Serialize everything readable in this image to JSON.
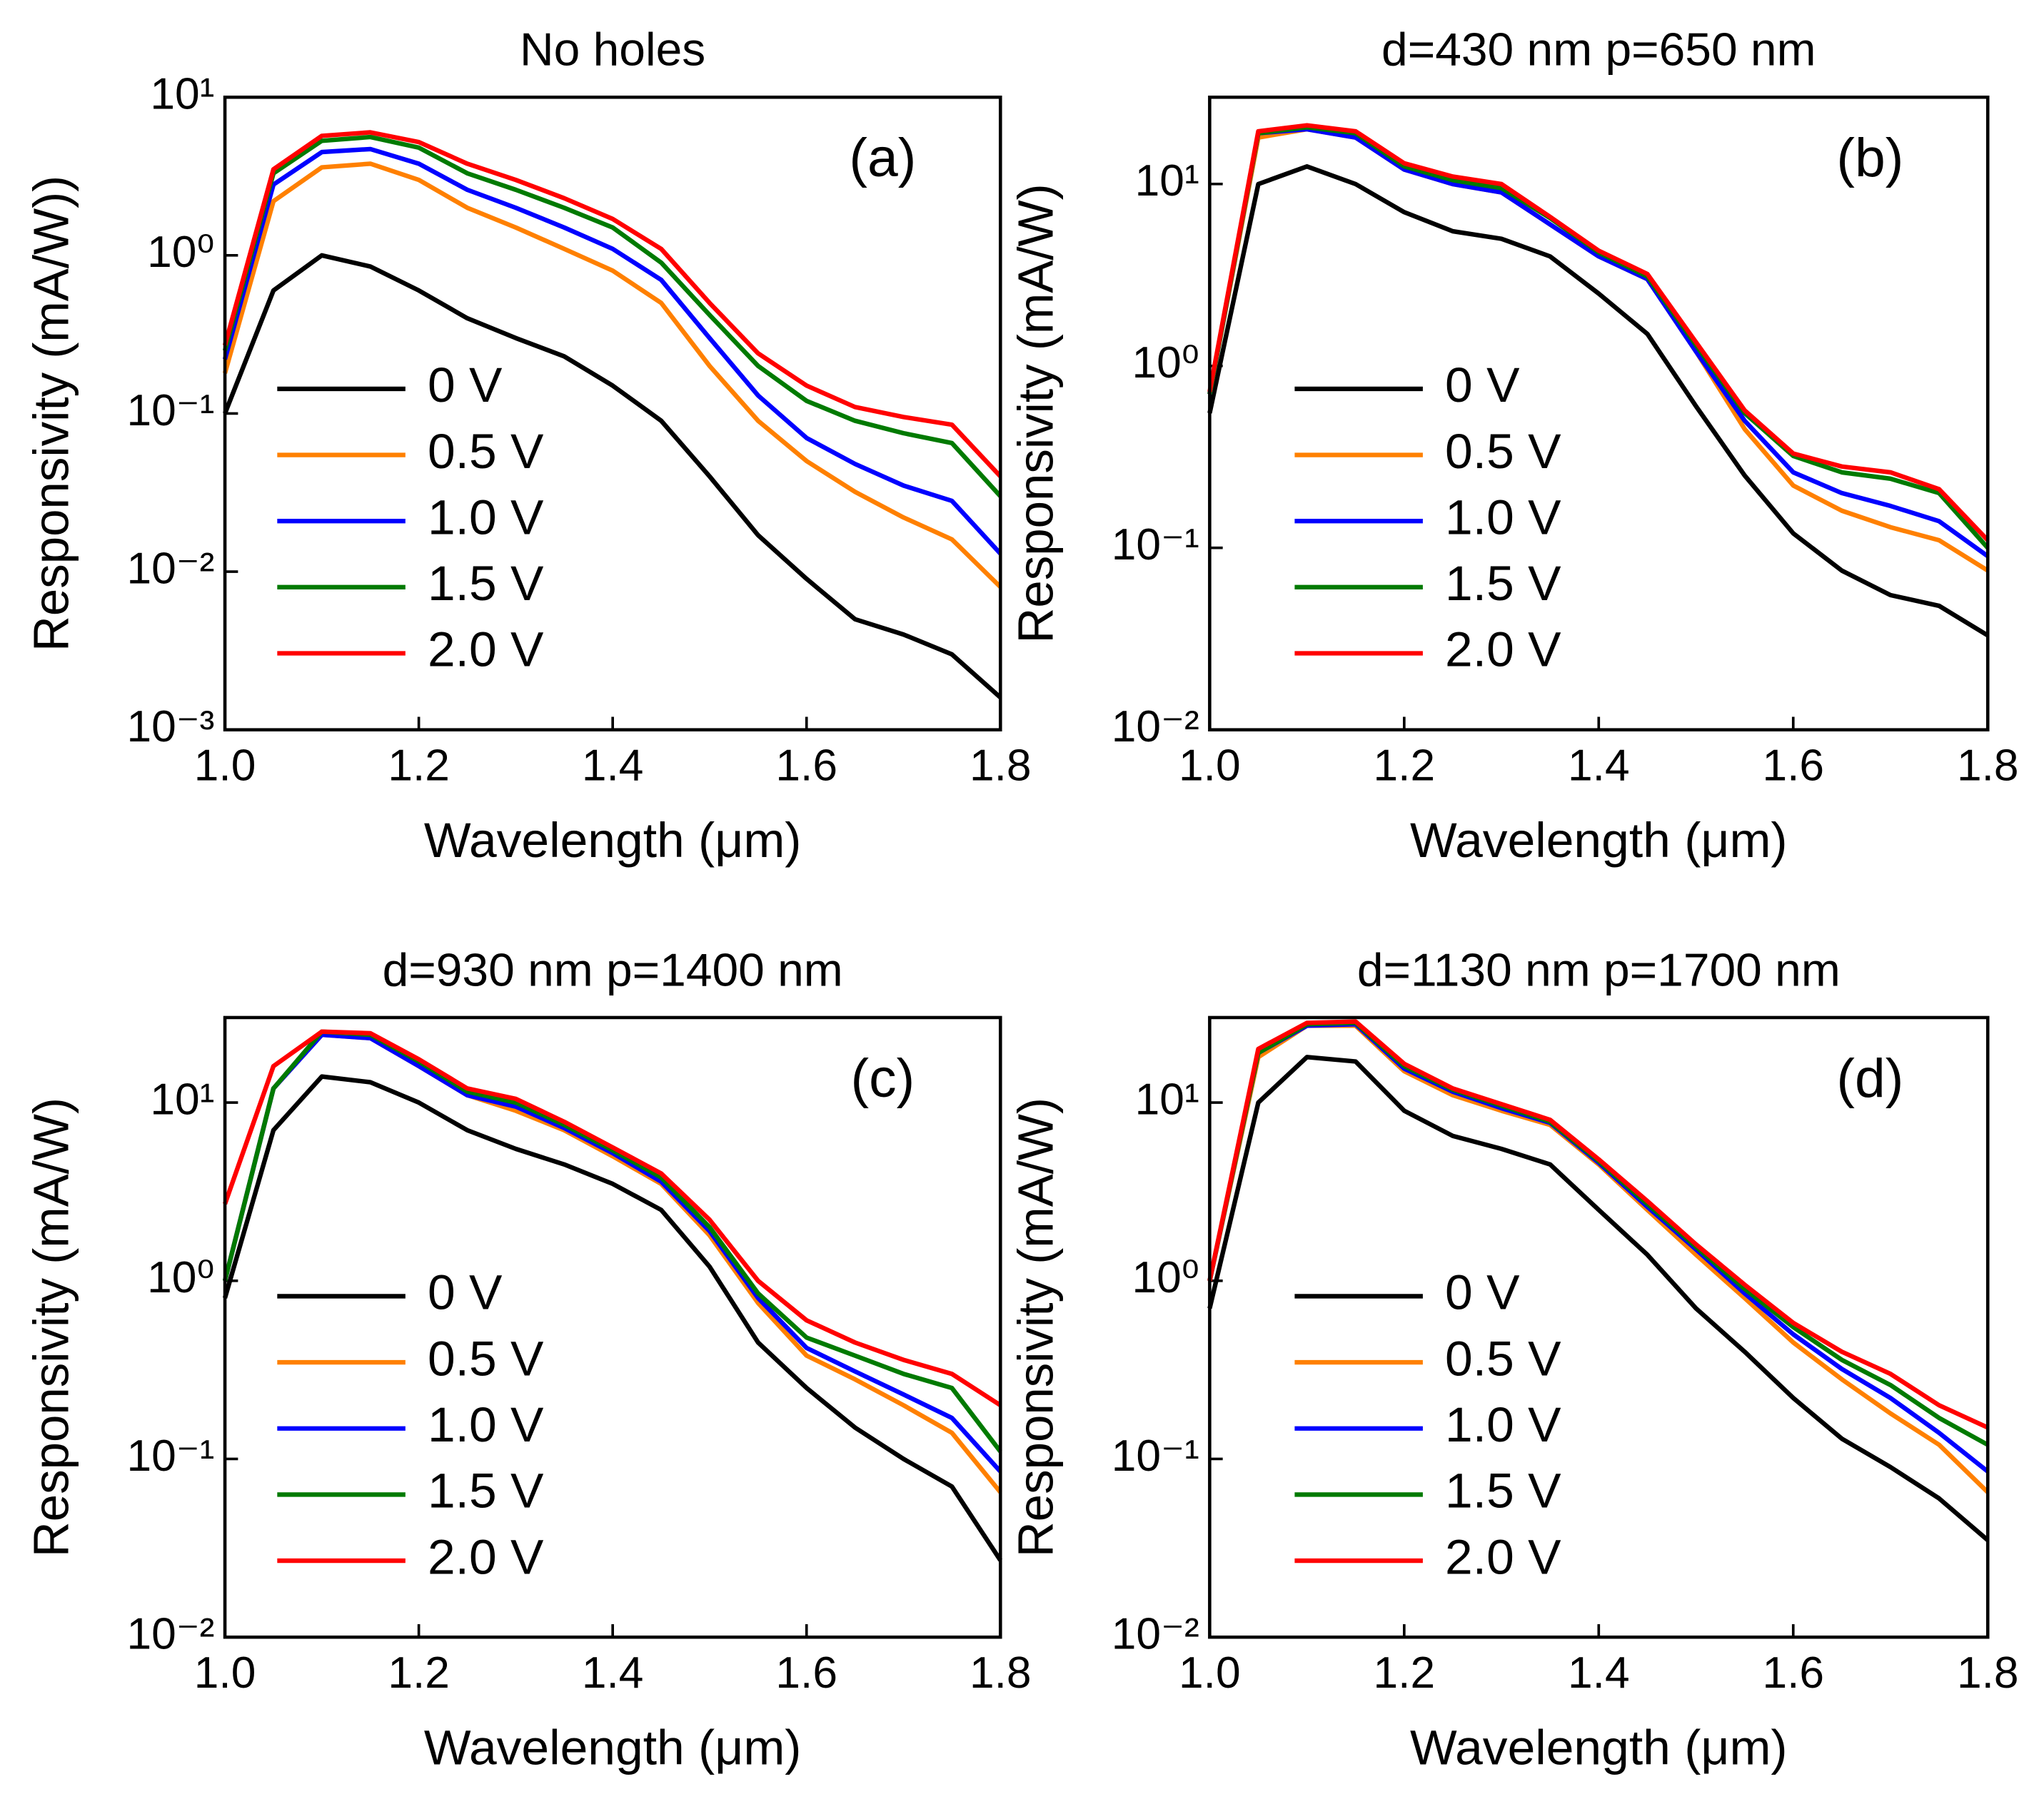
{
  "chart_data": [
    {
      "type": "line",
      "title": "No holes",
      "panel_label": "(a)",
      "xlabel": "Wavelength (μm)",
      "ylabel": "Responsivity (mA/W))",
      "x": [
        1.0,
        1.05,
        1.1,
        1.15,
        1.2,
        1.25,
        1.3,
        1.35,
        1.4,
        1.45,
        1.5,
        1.55,
        1.6,
        1.65,
        1.7,
        1.75,
        1.8
      ],
      "series": [
        {
          "name": "0 V",
          "color": "#000000",
          "values": [
            0.1,
            0.6,
            1.0,
            0.85,
            0.6,
            0.4,
            0.3,
            0.23,
            0.15,
            0.09,
            0.04,
            0.017,
            0.009,
            0.005,
            0.004,
            0.003,
            0.0016
          ]
        },
        {
          "name": "0.5 V",
          "color": "#ff8000",
          "values": [
            0.18,
            2.2,
            3.6,
            3.8,
            3.0,
            2.0,
            1.5,
            1.1,
            0.8,
            0.5,
            0.2,
            0.09,
            0.05,
            0.032,
            0.022,
            0.016,
            0.008
          ]
        },
        {
          "name": "1.0 V",
          "color": "#0000ff",
          "values": [
            0.22,
            2.8,
            4.5,
            4.7,
            3.8,
            2.6,
            2.0,
            1.5,
            1.1,
            0.7,
            0.3,
            0.13,
            0.07,
            0.048,
            0.035,
            0.028,
            0.013
          ]
        },
        {
          "name": "1.5 V",
          "color": "#007a00",
          "values": [
            0.25,
            3.3,
            5.3,
            5.6,
            4.8,
            3.3,
            2.6,
            2.0,
            1.5,
            0.9,
            0.42,
            0.2,
            0.12,
            0.09,
            0.075,
            0.065,
            0.03
          ]
        },
        {
          "name": "2.0 V",
          "color": "#ff0000",
          "values": [
            0.27,
            3.5,
            5.7,
            6.0,
            5.2,
            3.8,
            3.0,
            2.3,
            1.7,
            1.1,
            0.5,
            0.24,
            0.15,
            0.11,
            0.095,
            0.085,
            0.04
          ]
        }
      ],
      "xlim": [
        1.0,
        1.8
      ],
      "ylim": [
        0.001,
        10
      ],
      "log_y": true,
      "legend": "center left",
      "xticks": [
        {
          "value": 1.0,
          "label": "1.0"
        },
        1.2,
        1.4,
        1.6,
        1.8
      ],
      "yticks": [
        {
          "value": 0.001,
          "label": "10⁻³"
        },
        {
          "value": 0.01,
          "label": "10⁻²"
        },
        {
          "value": 0.1,
          "label": "10⁻¹"
        },
        {
          "value": 1,
          "label": "10⁰"
        },
        {
          "value": 10,
          "label": "10¹"
        }
      ]
    },
    {
      "type": "line",
      "title": "d=430 nm  p=650 nm",
      "panel_label": "(b)",
      "xlabel": "Wavelength (μm)",
      "ylabel": "Responsivity (mA/W)",
      "x": [
        1.0,
        1.05,
        1.1,
        1.15,
        1.2,
        1.25,
        1.3,
        1.35,
        1.4,
        1.45,
        1.5,
        1.55,
        1.6,
        1.65,
        1.7,
        1.75,
        1.8
      ],
      "series": [
        {
          "name": "0 V",
          "color": "#000000",
          "values": [
            0.55,
            10,
            12.5,
            10,
            7,
            5.5,
            5,
            4,
            2.5,
            1.5,
            0.6,
            0.25,
            0.12,
            0.075,
            0.055,
            0.048,
            0.033
          ]
        },
        {
          "name": "0.5 V",
          "color": "#ff8000",
          "values": [
            0.7,
            18,
            20,
            18,
            12,
            10,
            9,
            6,
            4,
            3,
            1.2,
            0.45,
            0.22,
            0.16,
            0.13,
            0.11,
            0.075
          ]
        },
        {
          "name": "1.0 V",
          "color": "#0000ff",
          "values": [
            0.7,
            19,
            20,
            18,
            12,
            10,
            9,
            6,
            4,
            3,
            1.2,
            0.5,
            0.26,
            0.2,
            0.17,
            0.14,
            0.09
          ]
        },
        {
          "name": "1.5 V",
          "color": "#007a00",
          "values": [
            0.7,
            19,
            20.5,
            19,
            12.5,
            10.5,
            9.5,
            6.5,
            4.2,
            3.1,
            1.3,
            0.55,
            0.32,
            0.26,
            0.24,
            0.2,
            0.1
          ]
        },
        {
          "name": "2.0 V",
          "color": "#ff0000",
          "values": [
            0.72,
            19.5,
            21,
            19.5,
            13,
            11,
            10,
            6.6,
            4.3,
            3.2,
            1.35,
            0.57,
            0.33,
            0.28,
            0.26,
            0.21,
            0.11
          ]
        }
      ],
      "xlim": [
        1.0,
        1.8
      ],
      "ylim": [
        0.01,
        30
      ],
      "log_y": true,
      "legend": "center left",
      "xticks": [
        {
          "value": 1.0,
          "label": "1.0"
        },
        1.2,
        1.4,
        1.6,
        1.8
      ],
      "yticks": [
        {
          "value": 0.01,
          "label": "10⁻²"
        },
        {
          "value": 0.1,
          "label": "10⁻¹"
        },
        {
          "value": 1,
          "label": "10⁰"
        },
        {
          "value": 10,
          "label": "10¹"
        }
      ]
    },
    {
      "type": "line",
      "title": "d=930 nm   p=1400 nm",
      "panel_label": "(c)",
      "xlabel": "Wavelength (μm)",
      "ylabel": "Responsivity (mA/W)",
      "x": [
        1.0,
        1.05,
        1.1,
        1.15,
        1.2,
        1.25,
        1.3,
        1.35,
        1.4,
        1.45,
        1.5,
        1.55,
        1.6,
        1.65,
        1.7,
        1.75,
        1.8
      ],
      "series": [
        {
          "name": "0 V",
          "color": "#000000",
          "values": [
            0.8,
            7,
            14,
            13,
            10,
            7,
            5.5,
            4.5,
            3.5,
            2.5,
            1.2,
            0.45,
            0.25,
            0.15,
            0.1,
            0.07,
            0.027
          ]
        },
        {
          "name": "0.5 V",
          "color": "#ff8000",
          "values": [
            1.0,
            12,
            24,
            23,
            16,
            11,
            9,
            7,
            5,
            3.5,
            1.8,
            0.75,
            0.38,
            0.28,
            0.2,
            0.14,
            0.065
          ]
        },
        {
          "name": "1.0 V",
          "color": "#0000ff",
          "values": [
            1.0,
            12,
            24,
            23,
            16,
            11,
            9.5,
            7.2,
            5.2,
            3.6,
            1.9,
            0.8,
            0.42,
            0.31,
            0.23,
            0.17,
            0.085
          ]
        },
        {
          "name": "1.5 V",
          "color": "#007a00",
          "values": [
            1.0,
            12,
            25,
            24,
            17,
            11.5,
            10,
            7.5,
            5.4,
            3.8,
            2.0,
            0.85,
            0.48,
            0.38,
            0.3,
            0.25,
            0.11
          ]
        },
        {
          "name": "2.0 V",
          "color": "#ff0000",
          "values": [
            2.7,
            16,
            25,
            24.5,
            17.5,
            12,
            10.5,
            7.8,
            5.6,
            4.0,
            2.2,
            1.0,
            0.6,
            0.45,
            0.36,
            0.3,
            0.2
          ]
        }
      ],
      "xlim": [
        1.0,
        1.8
      ],
      "ylim": [
        0.01,
        30
      ],
      "log_y": true,
      "legend": "center left",
      "xticks": [
        {
          "value": 1.0,
          "label": "1.0"
        },
        1.2,
        1.4,
        1.6,
        1.8
      ],
      "yticks": [
        {
          "value": 0.01,
          "label": "10⁻²"
        },
        {
          "value": 0.1,
          "label": "10⁻¹"
        },
        {
          "value": 1,
          "label": "10⁰"
        },
        {
          "value": 10,
          "label": "10¹"
        }
      ]
    },
    {
      "type": "line",
      "title": "d=1130 nm  p=1700 nm",
      "panel_label": "(d)",
      "xlabel": "Wavelength (μm)",
      "ylabel": "Responsivity (mA/W)",
      "x": [
        1.0,
        1.05,
        1.1,
        1.15,
        1.2,
        1.25,
        1.3,
        1.35,
        1.4,
        1.45,
        1.5,
        1.55,
        1.6,
        1.65,
        1.7,
        1.75,
        1.8
      ],
      "series": [
        {
          "name": "0 V",
          "color": "#000000",
          "values": [
            0.7,
            10,
            18,
            17,
            9,
            6.5,
            5.5,
            4.5,
            2.5,
            1.4,
            0.7,
            0.4,
            0.22,
            0.13,
            0.09,
            0.06,
            0.035
          ]
        },
        {
          "name": "0.5 V",
          "color": "#ff8000",
          "values": [
            1.0,
            18,
            27,
            27,
            15,
            11,
            9,
            7.5,
            4.5,
            2.5,
            1.4,
            0.8,
            0.45,
            0.28,
            0.18,
            0.12,
            0.065
          ]
        },
        {
          "name": "1.0 V",
          "color": "#0000ff",
          "values": [
            1.0,
            19,
            27,
            27.5,
            15.5,
            11.5,
            9.3,
            7.7,
            4.6,
            2.6,
            1.5,
            0.85,
            0.5,
            0.32,
            0.22,
            0.14,
            0.085
          ]
        },
        {
          "name": "1.5 V",
          "color": "#007a00",
          "values": [
            1.0,
            19,
            27.5,
            28,
            16,
            11.8,
            9.6,
            7.8,
            4.7,
            2.7,
            1.55,
            0.9,
            0.55,
            0.36,
            0.26,
            0.17,
            0.12
          ]
        },
        {
          "name": "2.0 V",
          "color": "#ff0000",
          "values": [
            1.0,
            20,
            28,
            28.5,
            16.5,
            12,
            9.8,
            8,
            4.8,
            2.8,
            1.6,
            0.95,
            0.58,
            0.4,
            0.3,
            0.2,
            0.15
          ]
        }
      ],
      "xlim": [
        1.0,
        1.8
      ],
      "ylim": [
        0.01,
        30
      ],
      "log_y": true,
      "legend": "center left",
      "xticks": [
        {
          "value": 1.0,
          "label": "1.0"
        },
        1.2,
        1.4,
        1.6,
        1.8
      ],
      "yticks": [
        {
          "value": 0.01,
          "label": "10⁻²"
        },
        {
          "value": 0.1,
          "label": "10⁻¹"
        },
        {
          "value": 1,
          "label": "10⁰"
        },
        {
          "value": 10,
          "label": "10¹"
        }
      ]
    }
  ]
}
